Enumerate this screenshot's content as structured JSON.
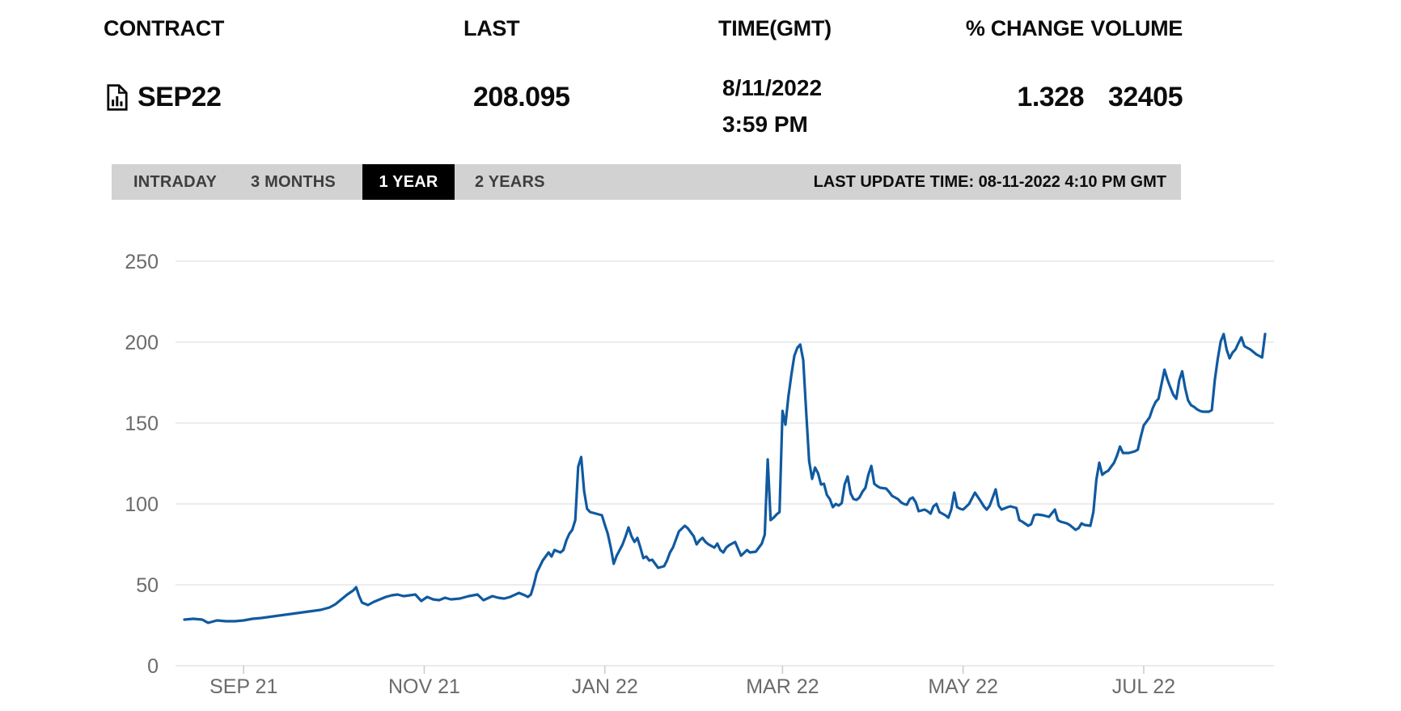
{
  "table": {
    "headers": {
      "contract": "CONTRACT",
      "last": "LAST",
      "time": "TIME(GMT)",
      "change": "% CHANGE",
      "volume": "VOLUME"
    },
    "row": {
      "icon": "document-chart-icon",
      "contract": "SEP22",
      "last": "208.095",
      "date": "8/11/2022",
      "time": "3:59 PM",
      "change": "1.328",
      "volume": "32405"
    }
  },
  "tabs": {
    "items": [
      {
        "label": "INTRADAY",
        "active": false
      },
      {
        "label": "3 MONTHS",
        "active": false
      },
      {
        "label": "1 YEAR",
        "active": true
      },
      {
        "label": "2 YEARS",
        "active": false
      }
    ],
    "last_update": "LAST UPDATE TIME: 08-11-2022 4:10 PM GMT"
  },
  "colors": {
    "line": "#105aa0",
    "grid": "#e4e6e8",
    "tick": "#c9cdd1",
    "axis_text": "#6b6b6b",
    "tab_bar_bg": "#d2d2d2",
    "tab_text": "#3e3e3e",
    "active_tab_bg": "#000000",
    "active_tab_text": "#ffffff"
  },
  "chart_data": {
    "type": "line",
    "title": "",
    "xlabel": "",
    "ylabel": "",
    "ylim": [
      0,
      250
    ],
    "y_ticks": [
      0,
      50,
      100,
      150,
      200,
      250
    ],
    "x_ticks": [
      "SEP 21",
      "NOV 21",
      "JAN 22",
      "MAR 22",
      "MAY 22",
      "JUL 22"
    ],
    "x_tick_days": [
      20,
      81,
      142,
      202,
      263,
      324
    ],
    "xlim_days": [
      0,
      365
    ],
    "x_range": "2021-08-11 to 2022-08-11",
    "grid": true,
    "legend": false,
    "series": [
      {
        "name": "SEP22",
        "points": [
          [
            0,
            28.5
          ],
          [
            3,
            29
          ],
          [
            6,
            28.5
          ],
          [
            8,
            26.5
          ],
          [
            11,
            28
          ],
          [
            14,
            27.5
          ],
          [
            17,
            27.5
          ],
          [
            20,
            28
          ],
          [
            23,
            29
          ],
          [
            26,
            29.5
          ],
          [
            30,
            30.5
          ],
          [
            34,
            31.5
          ],
          [
            38,
            32.5
          ],
          [
            42,
            33.5
          ],
          [
            46,
            34.5
          ],
          [
            49,
            36
          ],
          [
            51,
            38
          ],
          [
            53,
            41
          ],
          [
            55,
            44
          ],
          [
            57,
            46.5
          ],
          [
            58,
            48.5
          ],
          [
            59,
            43
          ],
          [
            60,
            39
          ],
          [
            62,
            37.5
          ],
          [
            64,
            39.5
          ],
          [
            66,
            41
          ],
          [
            68,
            42.5
          ],
          [
            70,
            43.5
          ],
          [
            72,
            44
          ],
          [
            74,
            43
          ],
          [
            76,
            43.5
          ],
          [
            78,
            44
          ],
          [
            80,
            40
          ],
          [
            82,
            42.5
          ],
          [
            84,
            41
          ],
          [
            86,
            40.5
          ],
          [
            88,
            42
          ],
          [
            90,
            41
          ],
          [
            93,
            41.5
          ],
          [
            96,
            43
          ],
          [
            99,
            44
          ],
          [
            101,
            40.5
          ],
          [
            104,
            43
          ],
          [
            106,
            42
          ],
          [
            108,
            41.5
          ],
          [
            110,
            42.5
          ],
          [
            113,
            45
          ],
          [
            115,
            43.5
          ],
          [
            116,
            42.5
          ],
          [
            117,
            44
          ],
          [
            118,
            50
          ],
          [
            119,
            57.5
          ],
          [
            121,
            65
          ],
          [
            123,
            70
          ],
          [
            124,
            67.5
          ],
          [
            125,
            71.5
          ],
          [
            127,
            70
          ],
          [
            128,
            71.5
          ],
          [
            129,
            77.5
          ],
          [
            130,
            81.5
          ],
          [
            131,
            84
          ],
          [
            132,
            90
          ],
          [
            133,
            123
          ],
          [
            134,
            129
          ],
          [
            135,
            108
          ],
          [
            136,
            97
          ],
          [
            137,
            95
          ],
          [
            139,
            94
          ],
          [
            141,
            93
          ],
          [
            142,
            87
          ],
          [
            143,
            81.5
          ],
          [
            144,
            73
          ],
          [
            145,
            63
          ],
          [
            146,
            68
          ],
          [
            147,
            71.5
          ],
          [
            148,
            75
          ],
          [
            149,
            80
          ],
          [
            150,
            85.5
          ],
          [
            151,
            80
          ],
          [
            152,
            76.5
          ],
          [
            153,
            79
          ],
          [
            154,
            73
          ],
          [
            155,
            66.5
          ],
          [
            156,
            67.5
          ],
          [
            157,
            65
          ],
          [
            158,
            65.5
          ],
          [
            160,
            60.5
          ],
          [
            162,
            61.5
          ],
          [
            163,
            65
          ],
          [
            164,
            70
          ],
          [
            165,
            73
          ],
          [
            166,
            78
          ],
          [
            167,
            83
          ],
          [
            169,
            86.5
          ],
          [
            170,
            85
          ],
          [
            171,
            82.5
          ],
          [
            172,
            80
          ],
          [
            173,
            75
          ],
          [
            174,
            77.5
          ],
          [
            175,
            79
          ],
          [
            176,
            76.5
          ],
          [
            177,
            75
          ],
          [
            179,
            73
          ],
          [
            180,
            75.5
          ],
          [
            181,
            71.5
          ],
          [
            182,
            70
          ],
          [
            183,
            73
          ],
          [
            184,
            74.5
          ],
          [
            186,
            76.5
          ],
          [
            188,
            68
          ],
          [
            190,
            71.5
          ],
          [
            191,
            70
          ],
          [
            193,
            70.5
          ],
          [
            195,
            75.5
          ],
          [
            196,
            81
          ],
          [
            197,
            127.5
          ],
          [
            198,
            90
          ],
          [
            199,
            91.5
          ],
          [
            200,
            93.5
          ],
          [
            201,
            95
          ],
          [
            202,
            157.5
          ],
          [
            203,
            149
          ],
          [
            204,
            166.5
          ],
          [
            205,
            180
          ],
          [
            206,
            191.5
          ],
          [
            207,
            196.5
          ],
          [
            208,
            198.5
          ],
          [
            209,
            189
          ],
          [
            210,
            156.5
          ],
          [
            211,
            126.5
          ],
          [
            212,
            115.5
          ],
          [
            213,
            122.5
          ],
          [
            214,
            119
          ],
          [
            215,
            112
          ],
          [
            216,
            112.5
          ],
          [
            217,
            105.5
          ],
          [
            218,
            103
          ],
          [
            219,
            98
          ],
          [
            220,
            100
          ],
          [
            221,
            99
          ],
          [
            222,
            100.5
          ],
          [
            223,
            112
          ],
          [
            224,
            117
          ],
          [
            225,
            106.5
          ],
          [
            226,
            103
          ],
          [
            227,
            102.5
          ],
          [
            228,
            104
          ],
          [
            229,
            107.5
          ],
          [
            230,
            110
          ],
          [
            231,
            118
          ],
          [
            232,
            123.5
          ],
          [
            233,
            112.5
          ],
          [
            234,
            111
          ],
          [
            235,
            110
          ],
          [
            237,
            109.5
          ],
          [
            238,
            107.5
          ],
          [
            239,
            105
          ],
          [
            241,
            103
          ],
          [
            242,
            101
          ],
          [
            243,
            100
          ],
          [
            244,
            99.5
          ],
          [
            245,
            103
          ],
          [
            246,
            104
          ],
          [
            247,
            101
          ],
          [
            248,
            95.5
          ],
          [
            250,
            96.5
          ],
          [
            251,
            95.5
          ],
          [
            252,
            94
          ],
          [
            253,
            98.5
          ],
          [
            254,
            100
          ],
          [
            255,
            95
          ],
          [
            256,
            94
          ],
          [
            257,
            93
          ],
          [
            258,
            91.5
          ],
          [
            259,
            96.5
          ],
          [
            260,
            107
          ],
          [
            261,
            98
          ],
          [
            262,
            97
          ],
          [
            263,
            96.5
          ],
          [
            265,
            100
          ],
          [
            267,
            107
          ],
          [
            269,
            101.5
          ],
          [
            270,
            98.5
          ],
          [
            271,
            96.5
          ],
          [
            272,
            99
          ],
          [
            274,
            109
          ],
          [
            275,
            99
          ],
          [
            276,
            96.5
          ],
          [
            278,
            98
          ],
          [
            279,
            98.5
          ],
          [
            281,
            97.5
          ],
          [
            282,
            90
          ],
          [
            283,
            89
          ],
          [
            285,
            86.5
          ],
          [
            286,
            87.5
          ],
          [
            287,
            93
          ],
          [
            288,
            93.5
          ],
          [
            290,
            93
          ],
          [
            292,
            92
          ],
          [
            294,
            96.5
          ],
          [
            295,
            90
          ],
          [
            296,
            89
          ],
          [
            298,
            88
          ],
          [
            299,
            87
          ],
          [
            301,
            84
          ],
          [
            302,
            85
          ],
          [
            303,
            88
          ],
          [
            304,
            87
          ],
          [
            306,
            86.5
          ],
          [
            307,
            95
          ],
          [
            308,
            115
          ],
          [
            309,
            125.5
          ],
          [
            310,
            118
          ],
          [
            311,
            119.5
          ],
          [
            312,
            120.5
          ],
          [
            314,
            125.5
          ],
          [
            315,
            130
          ],
          [
            316,
            135.5
          ],
          [
            317,
            131.5
          ],
          [
            319,
            131.5
          ],
          [
            321,
            132.5
          ],
          [
            322,
            133.5
          ],
          [
            323,
            141.5
          ],
          [
            324,
            148.5
          ],
          [
            326,
            153.5
          ],
          [
            327,
            159
          ],
          [
            328,
            163
          ],
          [
            329,
            165
          ],
          [
            331,
            183
          ],
          [
            332,
            177
          ],
          [
            333,
            172
          ],
          [
            334,
            167.5
          ],
          [
            335,
            165
          ],
          [
            336,
            176.5
          ],
          [
            337,
            182
          ],
          [
            338,
            171.5
          ],
          [
            339,
            164
          ],
          [
            340,
            161
          ],
          [
            341,
            160
          ],
          [
            342,
            158.5
          ],
          [
            343,
            157.5
          ],
          [
            344,
            157
          ],
          [
            346,
            157
          ],
          [
            347,
            158
          ],
          [
            348,
            176.5
          ],
          [
            349,
            189.5
          ],
          [
            350,
            200.5
          ],
          [
            351,
            205
          ],
          [
            352,
            195.5
          ],
          [
            353,
            190
          ],
          [
            354,
            193.5
          ],
          [
            355,
            195.5
          ],
          [
            356,
            199.5
          ],
          [
            357,
            203
          ],
          [
            358,
            197.5
          ],
          [
            359,
            196.5
          ],
          [
            360,
            195.5
          ],
          [
            361,
            194
          ],
          [
            362,
            192.5
          ],
          [
            363,
            191.5
          ],
          [
            364,
            190.5
          ],
          [
            365,
            205
          ]
        ]
      }
    ]
  }
}
